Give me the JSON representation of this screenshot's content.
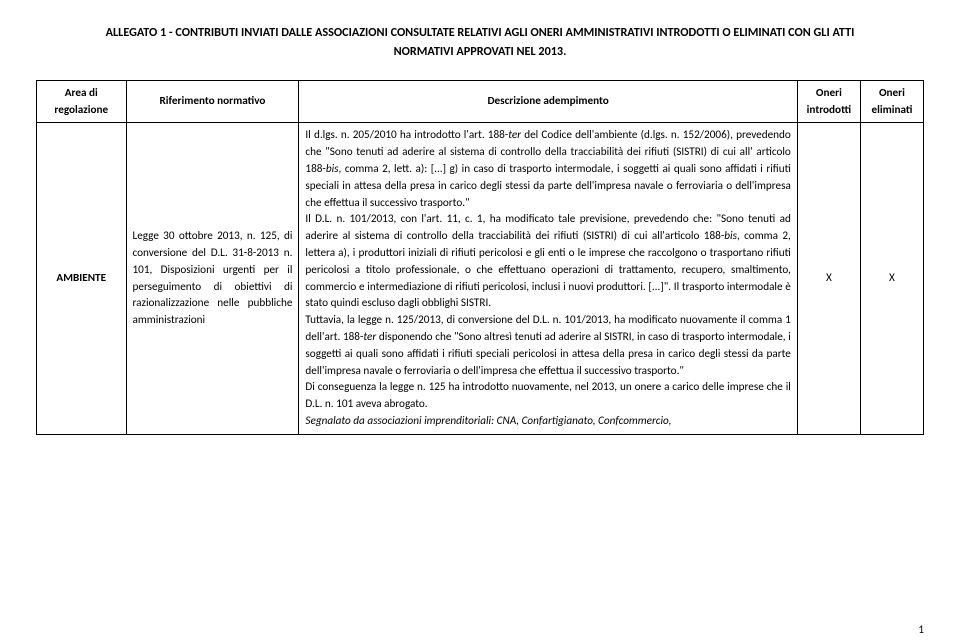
{
  "title_line1": "ALLEGATO 1 - CONTRIBUTI INVIATI DALLE ASSOCIAZIONI CONSULTATE RELATIVI AGLI ONERI AMMINISTRATIVI INTRODOTTI O ELIMINATI CON GLI ATTI",
  "title_line2": "NORMATIVI APPROVATI NEL 2013.",
  "headers": {
    "area": "Area di regolazione",
    "rif": "Riferimento normativo",
    "desc": "Descrizione adempimento",
    "intro": "Oneri introdotti",
    "elim": "Oneri eliminati"
  },
  "row": {
    "area": "AMBIENTE",
    "rif": "Legge 30 ottobre 2013, n. 125, di conversione del D.L. 31-8-2013 n. 101, Disposizioni urgenti per il perseguimento di obiettivi di razionalizzazione nelle pubbliche amministrazioni",
    "desc_p1": "Il d.lgs. n. 205/2010 ha introdotto l'art. 188-",
    "desc_p1_ter": "ter",
    "desc_p1b": " del Codice dell'ambiente (d.lgs. n. 152/2006), prevedendo che \"Sono tenuti ad aderire al sistema di controllo della tracciabilità dei rifiuti (SISTRI) di cui all' articolo 188-",
    "desc_p1_bis": "bis",
    "desc_p1c": ", comma 2, lett. a): [...] g) in caso di trasporto intermodale, i soggetti ai quali sono affidati i rifiuti speciali in attesa della presa in carico degli stessi da parte dell'impresa navale o ferroviaria o dell'impresa che effettua il successivo trasporto.\"",
    "desc_p2a": "Il D.L. n. 101/2013, con l'art. 11, c. 1, ha modificato tale previsione, prevedendo che: \"Sono tenuti ad aderire al sistema di controllo della tracciabilità dei rifiuti (SISTRI) di cui all'articolo 188-",
    "desc_p2_bis": "bis",
    "desc_p2b": ", comma 2, lettera a), i produttori iniziali di rifiuti pericolosi e gli enti o le imprese che raccolgono o trasportano rifiuti pericolosi a titolo professionale, o che effettuano operazioni di trattamento, recupero, smaltimento, commercio e intermediazione di rifiuti pericolosi, inclusi i nuovi produttori. [...]\". Il trasporto intermodale è stato quindi escluso dagli obblighi SISTRI.",
    "desc_p3a": "Tuttavia, la legge n. 125/2013, di conversione del D.L. n. 101/2013, ha modificato nuovamente il comma 1 dell'art. 188-",
    "desc_p3_ter": "ter",
    "desc_p3b": " disponendo che \"Sono altresì tenuti ad aderire al SISTRI, in caso di trasporto intermodale, i soggetti ai quali sono affidati i rifiuti speciali pericolosi in attesa della presa in carico degli stessi da parte dell'impresa navale o ferroviaria o dell'impresa che effettua il successivo trasporto.\"",
    "desc_p4": "Di conseguenza la legge n. 125 ha introdotto nuovamente, nel 2013, un onere a carico delle imprese che il D.L. n. 101 aveva abrogato.",
    "desc_p5": "Segnalato da associazioni imprenditoriali: CNA, Confartigianato, Confcommercio,",
    "x_intro": "X",
    "x_elim": "X"
  },
  "pagenum": "1"
}
